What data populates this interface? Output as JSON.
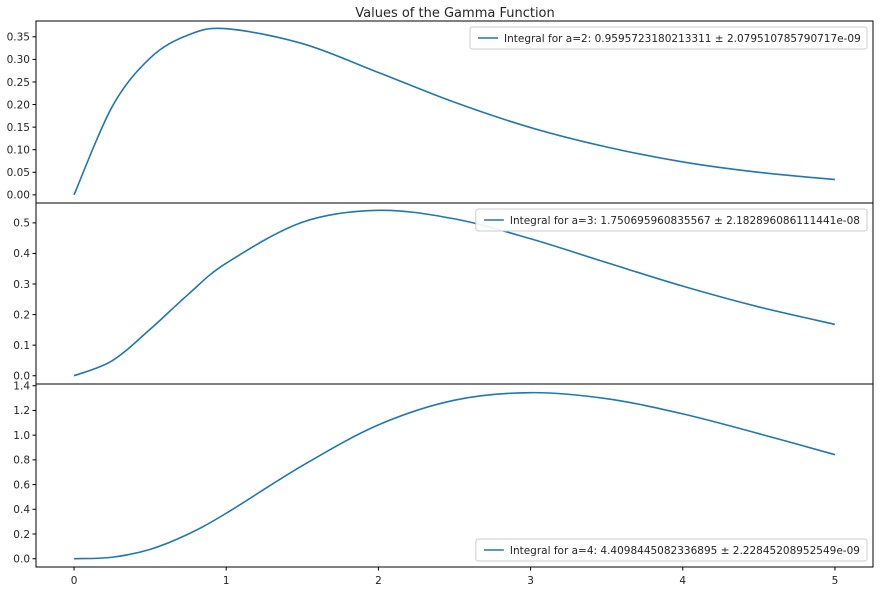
{
  "chart_data": {
    "type": "line",
    "title": "Values of the Gamma Function",
    "colors": {
      "series": "#1f77b4",
      "axes": "#000000",
      "background": "#ffffff"
    },
    "shared_x": {
      "xlim": [
        -0.25,
        5.25
      ],
      "ticks": [
        0,
        1,
        2,
        3,
        4,
        5
      ],
      "tick_labels": [
        "0",
        "1",
        "2",
        "3",
        "4",
        "5"
      ]
    },
    "grid": false,
    "panels": [
      {
        "a": 2,
        "function": "x^(a-1) * e^(-x)",
        "legend_label": "Integral for a=2: 0.9595723180213311 ± 2.079510785790717e-09",
        "legend_loc": "upper right",
        "ylim": [
          -0.018,
          0.385
        ],
        "yticks": [
          0.0,
          0.05,
          0.1,
          0.15,
          0.2,
          0.25,
          0.3,
          0.35
        ],
        "ytick_labels": [
          "0.00",
          "0.05",
          "0.10",
          "0.15",
          "0.20",
          "0.25",
          "0.30",
          "0.35"
        ],
        "x": [
          0,
          0.25,
          0.5,
          0.75,
          1,
          1.5,
          2,
          2.5,
          3,
          3.5,
          4,
          4.5,
          5
        ],
        "y": [
          0,
          0.195,
          0.303,
          0.354,
          0.368,
          0.335,
          0.271,
          0.205,
          0.149,
          0.106,
          0.073,
          0.05,
          0.034
        ]
      },
      {
        "a": 3,
        "function": "x^(a-1) * e^(-x)",
        "legend_label": "Integral for a=3: 1.750695960835567 ± 2.182896086111441e-08",
        "legend_loc": "upper right",
        "ylim": [
          -0.027,
          0.565
        ],
        "yticks": [
          0.0,
          0.1,
          0.2,
          0.3,
          0.4,
          0.5
        ],
        "ytick_labels": [
          "0.0",
          "0.1",
          "0.2",
          "0.3",
          "0.4",
          "0.5"
        ],
        "x": [
          0,
          0.25,
          0.5,
          0.75,
          1,
          1.5,
          2,
          2.5,
          3,
          3.5,
          4,
          4.5,
          5
        ],
        "y": [
          0,
          0.049,
          0.152,
          0.266,
          0.368,
          0.502,
          0.541,
          0.513,
          0.448,
          0.37,
          0.293,
          0.225,
          0.168
        ]
      },
      {
        "a": 4,
        "function": "x^(a-1) * e^(-x)",
        "legend_label": "Integral for a=4: 4.4098445082336895 ± 2.22845208952549e-09",
        "legend_loc": "lower right",
        "ylim": [
          -0.067,
          1.414
        ],
        "yticks": [
          0.0,
          0.2,
          0.4,
          0.6,
          0.8,
          1.0,
          1.2,
          1.4
        ],
        "ytick_labels": [
          "0.0",
          "0.2",
          "0.4",
          "0.6",
          "0.8",
          "1.0",
          "1.2",
          "1.4"
        ],
        "x": [
          0,
          0.25,
          0.5,
          0.75,
          1,
          1.5,
          2,
          2.5,
          3,
          3.5,
          4,
          4.5,
          5
        ],
        "y": [
          0,
          0.012,
          0.076,
          0.199,
          0.368,
          0.753,
          1.083,
          1.283,
          1.344,
          1.295,
          1.172,
          1.012,
          0.842
        ]
      }
    ]
  }
}
